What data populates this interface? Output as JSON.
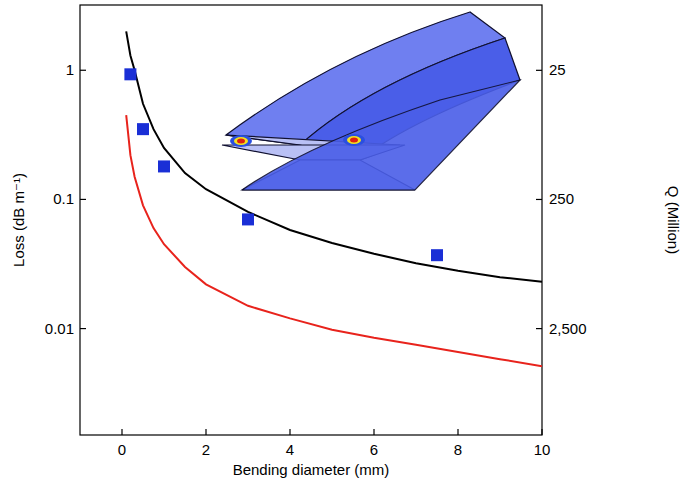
{
  "chart_data": {
    "type": "line",
    "xlabel": "Bending diameter (mm)",
    "ylabel": "Loss (dB m⁻¹)",
    "y2label": "Q (Million)",
    "log": "y",
    "xlim": [
      -1,
      10
    ],
    "xticks": [
      0,
      2,
      4,
      6,
      8,
      10
    ],
    "ylim": [
      0.0015,
      3.2
    ],
    "yticks": [
      0.01,
      0.1,
      1
    ],
    "y2lim": [
      16667,
      7.8
    ],
    "y2ticks": [
      25,
      250,
      {
        "value": 2500,
        "label": "2,500"
      }
    ],
    "series": [
      {
        "type": "line",
        "color": "#000000",
        "line_style": "solid",
        "x": [
          0.1,
          0.2,
          0.3,
          0.5,
          0.75,
          1,
          1.5,
          2,
          3,
          4,
          5,
          6,
          7,
          8,
          9,
          10
        ],
        "values": [
          2.0,
          1.3,
          1.0,
          0.55,
          0.35,
          0.25,
          0.16,
          0.12,
          0.08,
          0.058,
          0.046,
          0.038,
          0.032,
          0.028,
          0.025,
          0.023
        ]
      },
      {
        "type": "line",
        "color": "#e8231c",
        "line_style": "solid",
        "x": [
          0.1,
          0.2,
          0.3,
          0.5,
          0.75,
          1,
          1.5,
          2,
          3,
          4,
          5,
          6,
          7,
          8,
          9,
          10
        ],
        "values": [
          0.45,
          0.22,
          0.15,
          0.09,
          0.06,
          0.045,
          0.03,
          0.022,
          0.015,
          0.012,
          0.0098,
          0.0085,
          0.0075,
          0.0066,
          0.0058,
          0.0051
        ]
      },
      {
        "type": "scatter",
        "color": "#1a2fd6",
        "marker": "square",
        "axis": "y",
        "x": [
          0.2,
          0.5,
          1.0,
          3.0,
          7.5
        ],
        "values": [
          0.93,
          0.35,
          0.18,
          0.07,
          0.037
        ]
      }
    ]
  }
}
